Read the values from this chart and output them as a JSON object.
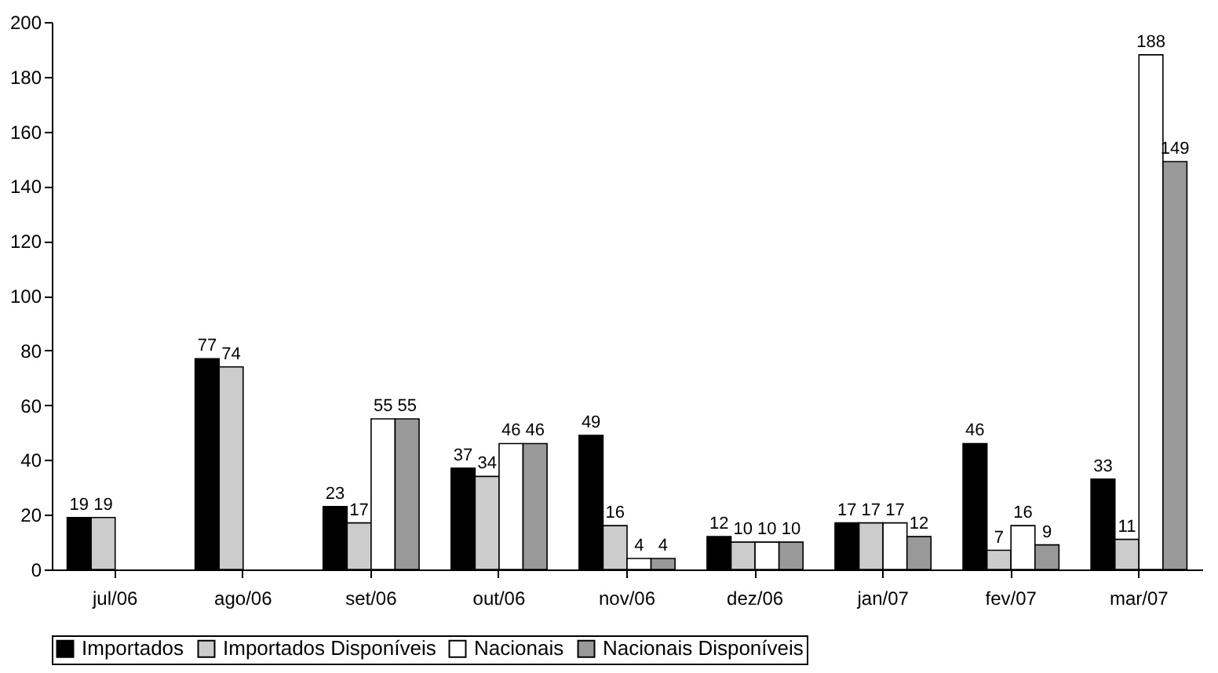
{
  "chart_data": {
    "type": "bar",
    "categories": [
      "jul/06",
      "ago/06",
      "set/06",
      "out/06",
      "nov/06",
      "dez/06",
      "jan/07",
      "fev/07",
      "mar/07"
    ],
    "series": [
      {
        "name": "Importados",
        "color": "#000000",
        "values": [
          19,
          77,
          23,
          37,
          49,
          12,
          17,
          46,
          33
        ]
      },
      {
        "name": "Importados Disponíveis",
        "color": "#cccccc",
        "values": [
          19,
          74,
          17,
          34,
          16,
          10,
          17,
          7,
          11
        ]
      },
      {
        "name": "Nacionais",
        "color": "#ffffff",
        "values": [
          null,
          null,
          55,
          46,
          4,
          10,
          17,
          16,
          188
        ]
      },
      {
        "name": "Nacionais Disponíveis",
        "color": "#999999",
        "values": [
          null,
          null,
          55,
          46,
          4,
          10,
          12,
          9,
          149
        ]
      }
    ],
    "ylim": [
      0,
      200
    ],
    "yticks": [
      0,
      20,
      40,
      60,
      80,
      100,
      120,
      140,
      160,
      180,
      200
    ],
    "data_labels": true,
    "legend": "bottom",
    "grid": false
  }
}
